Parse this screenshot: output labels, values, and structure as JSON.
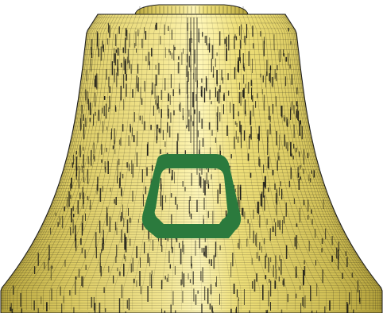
{
  "scene": {
    "subject": "bell-mesh",
    "colors": {
      "background": "#ffffff",
      "surface_light": "#fff7b0",
      "surface_mid": "#efe07a",
      "surface_dark": "#c8b84a",
      "wire": "#141414",
      "marker": "#2b7a3d"
    }
  }
}
